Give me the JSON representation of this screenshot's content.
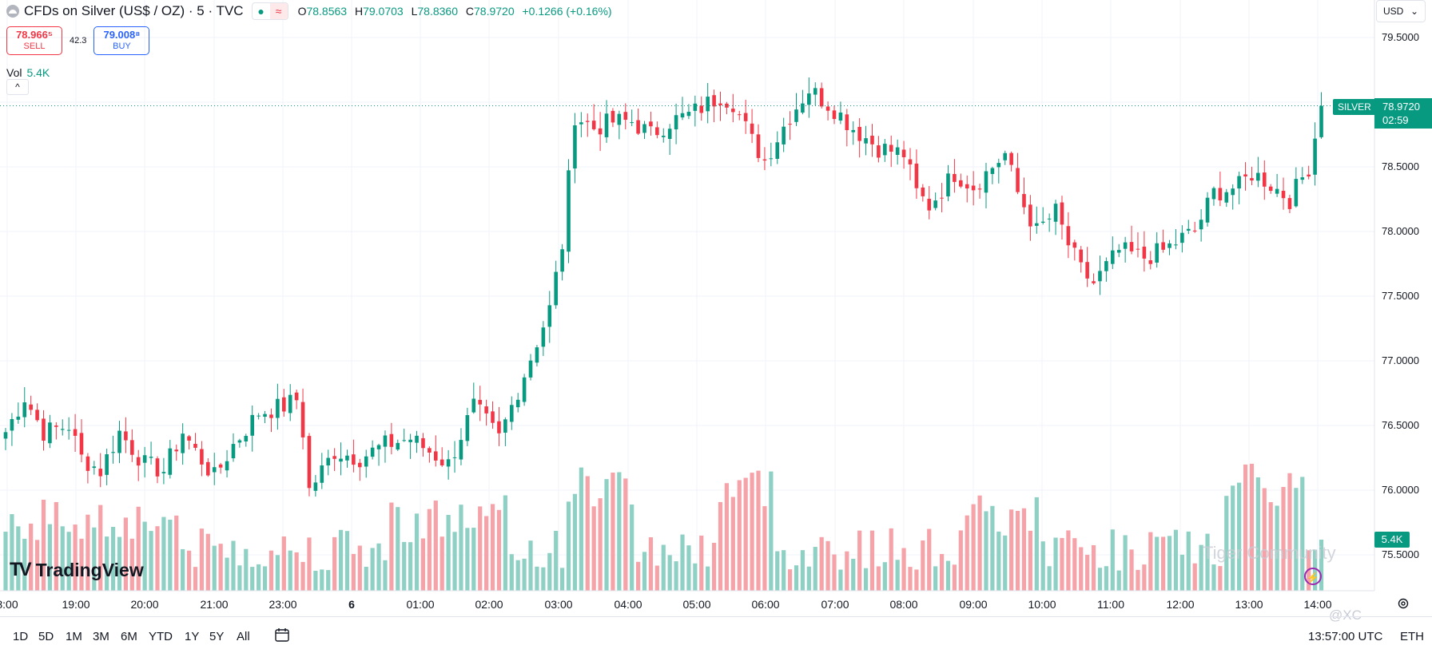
{
  "header": {
    "title": "CFDs on Silver (US$ / OZ) · 5 · TVC",
    "ohlc": {
      "o_label": "O",
      "o": "78.8563",
      "h_label": "H",
      "h": "79.0703",
      "l_label": "L",
      "l": "78.8360",
      "c_label": "C",
      "c": "78.9720",
      "change": "+0.1266 (+0.16%)"
    },
    "dot_icon": "●",
    "wave_icon": "≈"
  },
  "trade": {
    "sell_price": "78.966⁵",
    "sell_label": "SELL",
    "spread": "42.3",
    "buy_price": "79.008⁸",
    "buy_label": "BUY"
  },
  "volume": {
    "label": "Vol",
    "value": "5.4K"
  },
  "collapse_icon": "^",
  "currency": "USD",
  "price_tag": {
    "symbol": "SILVER",
    "price": "78.9720",
    "countdown": "02:59"
  },
  "volume_tag": "5.4K",
  "colors": {
    "up": "#089981",
    "down": "#f23645",
    "up_vol": "#8fd0c4",
    "down_vol": "#f5a3a8",
    "grid": "#f0f3fa"
  },
  "chart_data": {
    "type": "candlestick",
    "y_ticks": [
      "79.5000",
      "79.0000",
      "78.5000",
      "78.0000",
      "77.5000",
      "77.0000",
      "76.5000",
      "76.0000",
      "75.5000"
    ],
    "y_range": [
      75.44,
      79.75
    ],
    "x_ticks": [
      "8:00",
      "19:00",
      "20:00",
      "21:00",
      "23:00",
      "6",
      "01:00",
      "02:00",
      "03:00",
      "04:00",
      "05:00",
      "06:00",
      "07:00",
      "08:00",
      "09:00",
      "10:00",
      "11:00",
      "12:00",
      "13:00",
      "14:00"
    ],
    "last_close": 78.972,
    "candle_count": 209,
    "close_anchors": [
      [
        0,
        76.45
      ],
      [
        3,
        76.72
      ],
      [
        6,
        76.45
      ],
      [
        10,
        76.5
      ],
      [
        12,
        76.25
      ],
      [
        15,
        76.15
      ],
      [
        18,
        76.45
      ],
      [
        22,
        76.2
      ],
      [
        25,
        76.15
      ],
      [
        28,
        76.45
      ],
      [
        30,
        76.3
      ],
      [
        33,
        76.1
      ],
      [
        36,
        76.35
      ],
      [
        40,
        76.6
      ],
      [
        44,
        76.65
      ],
      [
        46,
        76.7
      ],
      [
        47,
        76.45
      ],
      [
        48,
        76.0
      ],
      [
        52,
        76.3
      ],
      [
        56,
        76.25
      ],
      [
        60,
        76.35
      ],
      [
        64,
        76.4
      ],
      [
        67,
        76.3
      ],
      [
        70,
        76.2
      ],
      [
        74,
        76.65
      ],
      [
        78,
        76.4
      ],
      [
        82,
        76.9
      ],
      [
        86,
        77.4
      ],
      [
        88,
        77.9
      ],
      [
        90,
        78.9
      ],
      [
        93,
        78.8
      ],
      [
        96,
        78.85
      ],
      [
        99,
        78.85
      ],
      [
        102,
        78.75
      ],
      [
        105,
        78.85
      ],
      [
        108,
        78.9
      ],
      [
        113,
        79.05
      ],
      [
        115,
        79.0
      ],
      [
        118,
        78.7
      ],
      [
        120,
        78.55
      ],
      [
        124,
        78.9
      ],
      [
        127,
        79.1
      ],
      [
        131,
        78.95
      ],
      [
        134,
        78.8
      ],
      [
        138,
        78.65
      ],
      [
        142,
        78.6
      ],
      [
        144,
        78.3
      ],
      [
        146,
        78.2
      ],
      [
        150,
        78.45
      ],
      [
        153,
        78.35
      ],
      [
        156,
        78.5
      ],
      [
        158,
        78.6
      ],
      [
        160,
        78.3
      ],
      [
        163,
        78.0
      ],
      [
        166,
        78.15
      ],
      [
        168,
        77.9
      ],
      [
        170,
        77.7
      ],
      [
        172,
        77.6
      ],
      [
        176,
        77.85
      ],
      [
        180,
        77.8
      ],
      [
        183,
        77.85
      ],
      [
        186,
        77.95
      ],
      [
        188,
        78.0
      ],
      [
        191,
        78.3
      ],
      [
        195,
        78.35
      ],
      [
        197,
        78.45
      ],
      [
        199,
        78.4
      ],
      [
        203,
        78.25
      ],
      [
        206,
        78.5
      ],
      [
        208,
        78.972
      ]
    ]
  },
  "bottom": {
    "ranges": [
      "1D",
      "5D",
      "1M",
      "3M",
      "6M",
      "YTD",
      "1Y",
      "5Y",
      "All"
    ],
    "clock": "13:57:00 UTC",
    "session": "ETH"
  },
  "branding": {
    "logo_text": "TradingView",
    "logo_mark": "TV",
    "watermark": "Tiger Community",
    "watermark2": "@XC"
  }
}
